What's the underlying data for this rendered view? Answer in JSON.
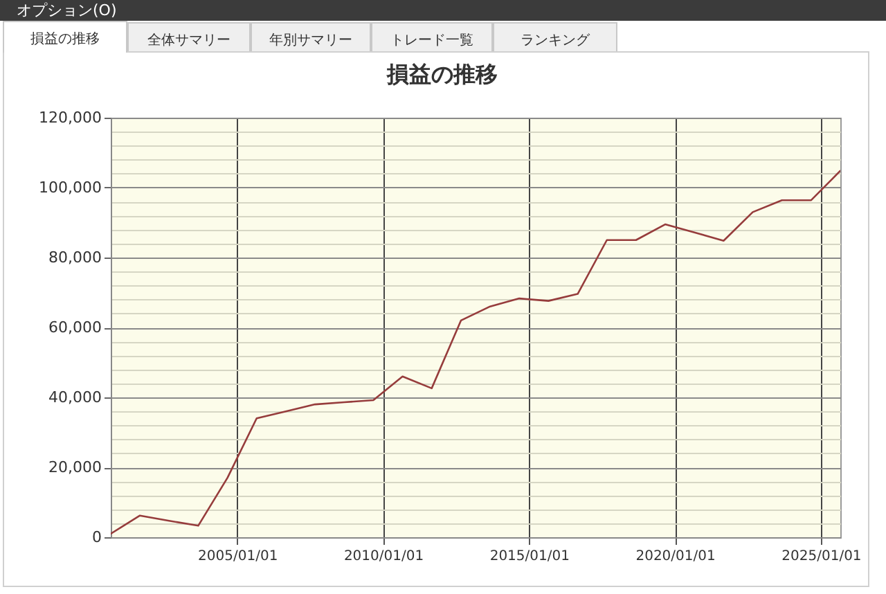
{
  "chart_data": {
    "type": "line",
    "title": "損益の推移",
    "annotations": [
      "オプション(O)",
      "損益の推移",
      "全体サマリー",
      "年別サマリー",
      "トレード一覧",
      "ランキング"
    ],
    "x": [
      "2000-09",
      "2001-09",
      "2002-09",
      "2003-09",
      "2004-09",
      "2005-09",
      "2006-09",
      "2007-09",
      "2008-09",
      "2009-09",
      "2010-09",
      "2011-09",
      "2012-09",
      "2013-09",
      "2014-09",
      "2015-09",
      "2016-09",
      "2017-09",
      "2018-09",
      "2019-09",
      "2020-09",
      "2021-09",
      "2022-09",
      "2023-09",
      "2024-09",
      "2025-09"
    ],
    "values": [
      1000,
      6200,
      4700,
      3300,
      17000,
      34000,
      36000,
      38000,
      38600,
      39200,
      46000,
      42600,
      62000,
      66000,
      68300,
      67600,
      69600,
      85000,
      85000,
      89500,
      87200,
      84800,
      93000,
      96400,
      96400,
      104800
    ],
    "color": "#963c3c",
    "line_style": "solid",
    "xlim": [
      "2000-09-01",
      "2025-09-01"
    ],
    "xticks": [
      {
        "value": "2005-01-01",
        "label": "2005/01/01"
      },
      {
        "value": "2010-01-01",
        "label": "2010/01/01"
      },
      {
        "value": "2015-01-01",
        "label": "2015/01/01"
      },
      {
        "value": "2020-01-01",
        "label": "2020/01/01"
      },
      {
        "value": "2025-01-01",
        "label": "2025/01/01"
      }
    ],
    "ylim": [
      0,
      120000
    ],
    "yticks": [
      {
        "value": 0,
        "label": "0"
      },
      {
        "value": 4000,
        "label": null
      },
      {
        "value": 8000,
        "label": null
      },
      {
        "value": 12000,
        "label": null
      },
      {
        "value": 16000,
        "label": null
      },
      {
        "value": 20000,
        "label": "20,000"
      },
      {
        "value": 24000,
        "label": null
      },
      {
        "value": 28000,
        "label": null
      },
      {
        "value": 32000,
        "label": null
      },
      {
        "value": 36000,
        "label": null
      },
      {
        "value": 40000,
        "label": "40,000"
      },
      {
        "value": 44000,
        "label": null
      },
      {
        "value": 48000,
        "label": null
      },
      {
        "value": 52000,
        "label": null
      },
      {
        "value": 56000,
        "label": null
      },
      {
        "value": 60000,
        "label": "60,000"
      },
      {
        "value": 64000,
        "label": null
      },
      {
        "value": 68000,
        "label": null
      },
      {
        "value": 72000,
        "label": null
      },
      {
        "value": 76000,
        "label": null
      },
      {
        "value": 80000,
        "label": "80,000"
      },
      {
        "value": 84000,
        "label": null
      },
      {
        "value": 88000,
        "label": null
      },
      {
        "value": 92000,
        "label": null
      },
      {
        "value": 96000,
        "label": null
      },
      {
        "value": 100000,
        "label": "100,000"
      },
      {
        "value": 104000,
        "label": null
      },
      {
        "value": 108000,
        "label": null
      },
      {
        "value": 112000,
        "label": null
      },
      {
        "value": 116000,
        "label": null
      },
      {
        "value": 120000,
        "label": "120,000"
      }
    ],
    "grid": true
  }
}
